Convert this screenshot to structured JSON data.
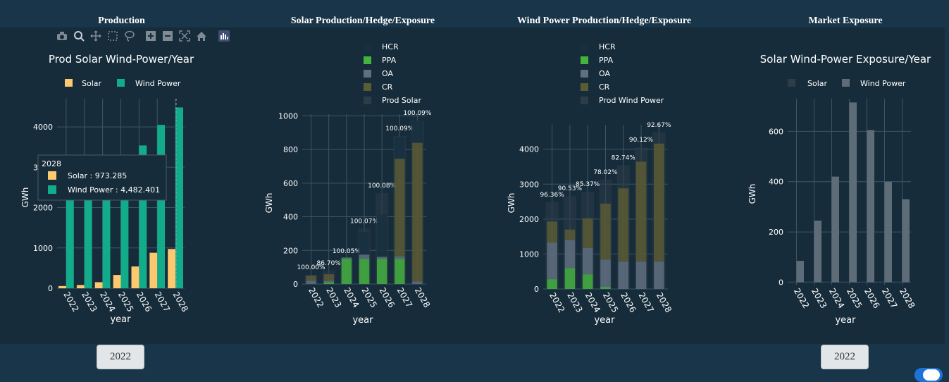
{
  "panels": {
    "production": "Production",
    "solar": "Solar Production/Hedge/Exposure",
    "wind": "Wind Power Production/Hedge/Exposure",
    "market": "Market Exposure"
  },
  "toolbar": [
    "camera-icon",
    "zoom-icon",
    "pan-icon",
    "box-select-icon",
    "lasso-icon",
    "zoom-in-icon",
    "zoom-out-icon",
    "autoscale-icon",
    "home-icon",
    "plotly-logo-icon"
  ],
  "year_buttons": {
    "left": "2022",
    "right": "2022"
  },
  "colors": {
    "background": "#162c3a",
    "solar": "#fec86f",
    "wind": "#13ac8b",
    "ppa": "#44b33f",
    "oa": "#607080",
    "cr": "#5a5c32",
    "hcr": "#16303f",
    "prod": "#2d3d48"
  },
  "chart_data": [
    {
      "type": "bar",
      "title": "Prod Solar Wind-Power/Year",
      "xlabel": "year",
      "ylabel": "GWh",
      "categories": [
        "2022",
        "2023",
        "2024",
        "2025",
        "2026",
        "2027",
        "2028"
      ],
      "ylim": [
        0,
        4700
      ],
      "yticks": [
        0,
        1000,
        2000,
        3000,
        4000
      ],
      "legend": "top-center",
      "series": [
        {
          "name": "Solar",
          "values": [
            55,
            80,
            150,
            330,
            540,
            880,
            973.285
          ]
        },
        {
          "name": "Wind Power",
          "values": [
            2480,
            2660,
            2780,
            3130,
            3540,
            4050,
            4482.401
          ]
        }
      ],
      "tooltip": {
        "title": "2028",
        "lines": [
          "Solar : 973.285",
          "Wind Power : 4,482.401"
        ]
      }
    },
    {
      "type": "bar",
      "title": "",
      "xlabel": "year",
      "ylabel": "GWh",
      "categories": [
        "2022",
        "2023",
        "2024",
        "2025",
        "2026",
        "2027",
        "2028"
      ],
      "ylim": [
        0,
        1010
      ],
      "yticks": [
        0,
        200,
        400,
        600,
        800,
        1000
      ],
      "legend": "top-center",
      "legend_items": [
        "HCR",
        "PPA",
        "OA",
        "CR",
        "Prod Solar"
      ],
      "stack": {
        "CR": [
          30,
          38,
          0,
          0,
          0,
          580,
          825
        ],
        "PPA": [
          0,
          10,
          150,
          150,
          150,
          150,
          0
        ],
        "OA": [
          20,
          10,
          8,
          25,
          12,
          15,
          15
        ],
        "HCR": [
          0,
          0,
          0,
          135,
          250,
          130,
          130
        ]
      },
      "prod_solar": [
        55,
        80,
        150,
        330,
        540,
        880,
        973
      ],
      "labels": [
        "100.00%",
        "86.70%",
        "100.05%",
        "100.07%",
        "100.08%",
        "100.09%",
        "100.09%"
      ]
    },
    {
      "type": "bar",
      "title": "",
      "xlabel": "year",
      "ylabel": "GWh",
      "categories": [
        "2022",
        "2023",
        "2024",
        "2025",
        "2026",
        "2027",
        "2028"
      ],
      "ylim": [
        0,
        4700
      ],
      "yticks": [
        0,
        1000,
        2000,
        3000,
        4000
      ],
      "legend": "top-center",
      "legend_items": [
        "HCR",
        "PPA",
        "OA",
        "CR",
        "Prod Wind Power"
      ],
      "stack": {
        "PPA": [
          280,
          600,
          420,
          60,
          0,
          0,
          0
        ],
        "OA": [
          1050,
          800,
          750,
          780,
          780,
          780,
          780
        ],
        "CR": [
          600,
          300,
          850,
          1600,
          2100,
          2860,
          3380
        ],
        "HCR": [
          0,
          0,
          0,
          0,
          0,
          0,
          0
        ]
      },
      "prod_wind": [
        2480,
        2660,
        2780,
        3130,
        3540,
        4050,
        4482
      ],
      "labels": [
        "96.36%",
        "90.53%",
        "85.37%",
        "78.02%",
        "82.74%",
        "90.12%",
        "92.67%"
      ]
    },
    {
      "type": "bar",
      "title": "Solar Wind-Power Exposure/Year",
      "xlabel": "year",
      "ylabel": "GWh",
      "categories": [
        "2022",
        "2023",
        "2024",
        "2025",
        "2026",
        "2027",
        "2028"
      ],
      "ylim": [
        -10,
        730
      ],
      "yticks": [
        0,
        200,
        400,
        600
      ],
      "legend": "top-center",
      "series": [
        {
          "name": "Solar",
          "values": [
            0,
            0,
            0,
            0,
            0,
            0,
            0
          ]
        },
        {
          "name": "Wind Power",
          "values": [
            85,
            245,
            420,
            715,
            605,
            400,
            330
          ]
        }
      ]
    }
  ]
}
